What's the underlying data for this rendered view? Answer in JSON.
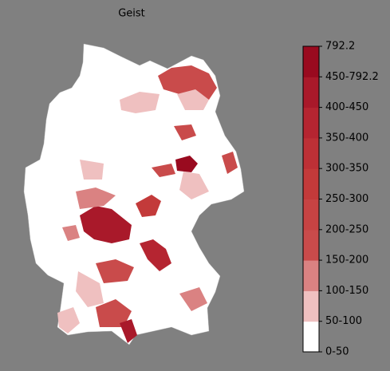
{
  "title": "Geist",
  "legend": {
    "labels": [
      "0-50",
      "50-100",
      "100-150",
      "150-200",
      "200-250",
      "250-300",
      "300-350",
      "350-400",
      "400-450",
      "450-792.2",
      "792.2"
    ],
    "colors": [
      "#ffffff",
      "#efc0c0",
      "#da8282",
      "#c94b4b",
      "#c74343",
      "#c33a3a",
      "#bd3036",
      "#b52531",
      "#a9192a",
      "#990a1f"
    ]
  }
}
